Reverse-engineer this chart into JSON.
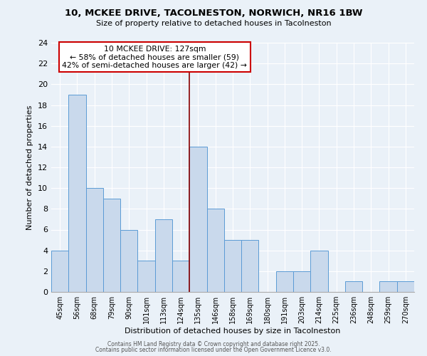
{
  "title_line1": "10, MCKEE DRIVE, TACOLNESTON, NORWICH, NR16 1BW",
  "title_line2": "Size of property relative to detached houses in Tacolneston",
  "xlabel": "Distribution of detached houses by size in Tacolneston",
  "ylabel": "Number of detached properties",
  "categories": [
    "45sqm",
    "56sqm",
    "68sqm",
    "79sqm",
    "90sqm",
    "101sqm",
    "113sqm",
    "124sqm",
    "135sqm",
    "146sqm",
    "158sqm",
    "169sqm",
    "180sqm",
    "191sqm",
    "203sqm",
    "214sqm",
    "225sqm",
    "236sqm",
    "248sqm",
    "259sqm",
    "270sqm"
  ],
  "values": [
    4,
    19,
    10,
    9,
    6,
    3,
    7,
    3,
    14,
    8,
    5,
    5,
    0,
    2,
    2,
    4,
    0,
    1,
    0,
    1,
    1
  ],
  "bar_color": "#c9d9ec",
  "bar_edge_color": "#5b9bd5",
  "annotation_line_category": "124sqm",
  "annotation_line_color": "#8b0000",
  "annotation_box_text": "10 MCKEE DRIVE: 127sqm\n← 58% of detached houses are smaller (59)\n42% of semi-detached houses are larger (42) →",
  "ylim": [
    0,
    24
  ],
  "yticks": [
    0,
    2,
    4,
    6,
    8,
    10,
    12,
    14,
    16,
    18,
    20,
    22,
    24
  ],
  "background_color": "#eaf1f8",
  "grid_color": "#c8d8e8",
  "footer_line1": "Contains HM Land Registry data © Crown copyright and database right 2025.",
  "footer_line2": "Contains public sector information licensed under the Open Government Licence v3.0."
}
